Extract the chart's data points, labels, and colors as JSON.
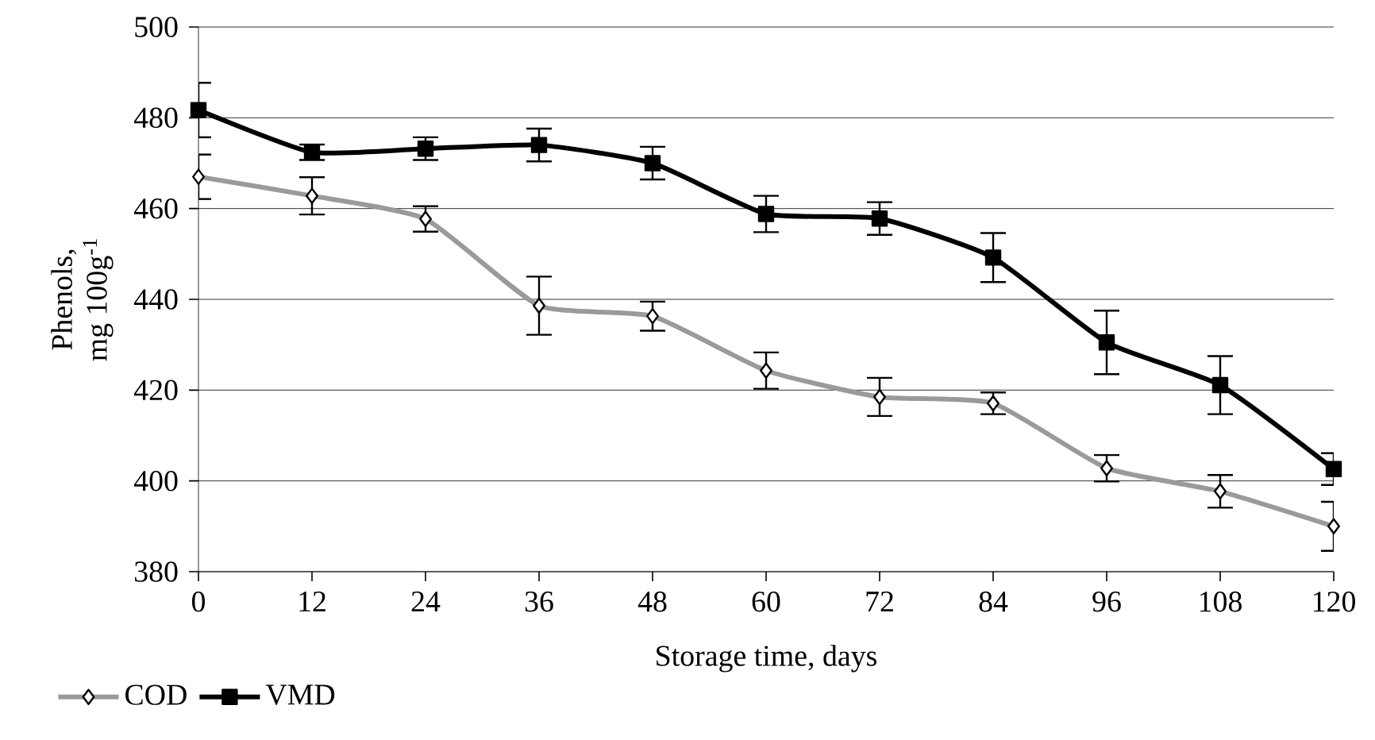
{
  "chart_data": {
    "type": "line",
    "xlabel": "Storage time, days",
    "ylabel": "Phenols,\nmg 100g$^{-1}$",
    "x": [
      0,
      12,
      24,
      36,
      48,
      60,
      72,
      84,
      96,
      108,
      120
    ],
    "series": [
      {
        "name": "COD",
        "color": "#9a9a9a",
        "marker": "diamond",
        "values": [
          467,
          462.8,
          457.7,
          438.6,
          436.3,
          424.3,
          418.5,
          417.1,
          402.8,
          397.7,
          390
        ],
        "errors": [
          4.9,
          4.1,
          2.8,
          6.4,
          3.2,
          4,
          4.2,
          2.4,
          2.9,
          3.6,
          5.4
        ]
      },
      {
        "name": "VMD",
        "color": "#000000",
        "marker": "square",
        "values": [
          481.7,
          472.4,
          473.2,
          474,
          470,
          458.8,
          457.8,
          449.2,
          430.5,
          421.1,
          402.6
        ],
        "errors": [
          6,
          1.7,
          2.5,
          3.6,
          3.6,
          4,
          3.6,
          5.4,
          7,
          6.4,
          3.5
        ]
      }
    ],
    "xlim": [
      0,
      120
    ],
    "xticks": [
      0,
      12,
      24,
      36,
      48,
      60,
      72,
      84,
      96,
      108,
      120
    ],
    "ylim": [
      380,
      500
    ],
    "yticks": [
      380,
      400,
      420,
      440,
      460,
      480,
      500
    ],
    "grid": "y",
    "legend": "bottom left",
    "line_style": "solid"
  }
}
